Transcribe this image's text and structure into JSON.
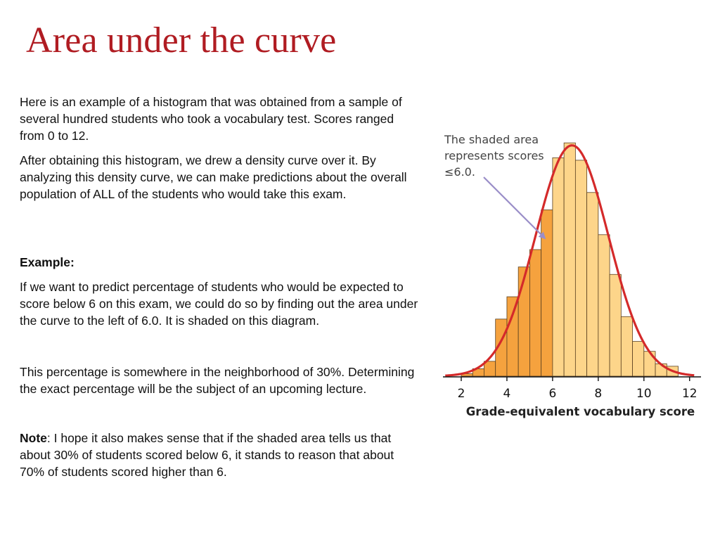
{
  "title": "Area under the curve",
  "paragraphs": {
    "intro": "Here is an example of a histogram that was obtained from a sample of several hundred students who took a vocabulary test.   Scores ranged from 0 to 12.",
    "density": "After obtaining this histogram, we drew a density curve over it. By analyzing this density curve, we can make predictions about the overall population of ALL of the students who would take this exam.",
    "example_label": "Example:",
    "example_text": "If we want to predict percentage of students who would be expected to score below 6 on this exam, we could do so by finding out the area under the curve to the left of 6.0. It is shaded on this diagram.",
    "percentage": "This percentage is somewhere in the neighborhood of 30%. Determining the exact percentage will be the subject of an upcoming lecture.",
    "note_label": "Note",
    "note_text": ": I hope it also makes sense that if the shaded area tells us that about 30% of students scored below 6, it stands to reason that about 70% of students scored higher than 6."
  },
  "chart_data": {
    "type": "bar",
    "xlabel": "Grade-equivalent vocabulary score",
    "ylabel": "",
    "x_ticks": [
      2,
      4,
      6,
      8,
      10,
      12
    ],
    "xlim": [
      1.2,
      12.5
    ],
    "ylim": [
      0,
      100
    ],
    "bin_width": 0.5,
    "bins": [
      {
        "start": 2.0,
        "value": 1,
        "shaded": true
      },
      {
        "start": 2.5,
        "value": 3,
        "shaded": true
      },
      {
        "start": 3.0,
        "value": 6,
        "shaded": true
      },
      {
        "start": 3.5,
        "value": 23,
        "shaded": true
      },
      {
        "start": 4.0,
        "value": 32,
        "shaded": true
      },
      {
        "start": 4.5,
        "value": 44,
        "shaded": true
      },
      {
        "start": 5.0,
        "value": 51,
        "shaded": true
      },
      {
        "start": 5.5,
        "value": 67,
        "shaded": true
      },
      {
        "start": 6.0,
        "value": 88,
        "shaded": false
      },
      {
        "start": 6.5,
        "value": 94,
        "shaded": false
      },
      {
        "start": 7.0,
        "value": 87,
        "shaded": false
      },
      {
        "start": 7.5,
        "value": 74,
        "shaded": false
      },
      {
        "start": 8.0,
        "value": 57,
        "shaded": false
      },
      {
        "start": 8.5,
        "value": 41,
        "shaded": false
      },
      {
        "start": 9.0,
        "value": 24,
        "shaded": false
      },
      {
        "start": 9.5,
        "value": 14,
        "shaded": false
      },
      {
        "start": 10.0,
        "value": 10,
        "shaded": false
      },
      {
        "start": 10.5,
        "value": 5,
        "shaded": false
      },
      {
        "start": 11.0,
        "value": 4,
        "shaded": false
      }
    ],
    "curve": {
      "type": "normal",
      "mean": 6.85,
      "sd": 1.6,
      "peak": 93,
      "xrange": [
        1.3,
        12.2
      ]
    },
    "shade_below": 6.0,
    "annotation": {
      "lines": [
        "The shaded area",
        "represents scores",
        "≤6.0."
      ],
      "points_to_x": 5.6,
      "points_to_value": 55
    },
    "colors": {
      "bar_fill": "#fdd58a",
      "bar_fill_shaded": "#f5a23e",
      "bar_stroke": "#5a4020",
      "curve": "#d42a2a",
      "arrow": "#9a8ec8",
      "annotation_text": "#444444",
      "axis": "#111111"
    }
  }
}
